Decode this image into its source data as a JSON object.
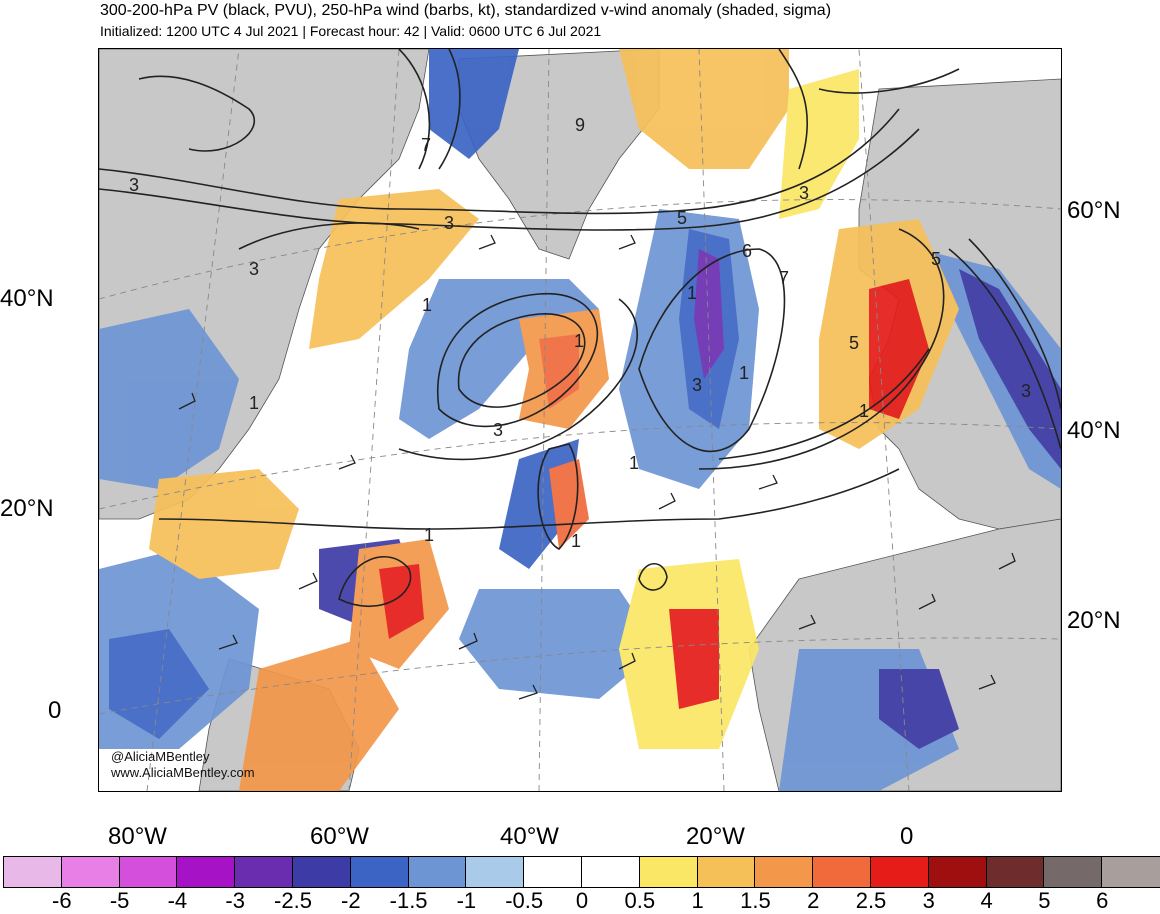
{
  "header": {
    "title": "300-200-hPa PV (black, PVU), 250-hPa wind (barbs, kt), standardized v-wind anomaly (shaded, sigma)",
    "subtitle": "Initialized: 1200 UTC 4 Jul 2021 | Forecast hour: 42 | Valid: 0600 UTC 6 Jul 2021"
  },
  "map": {
    "left_lat_labels": [
      "40°N",
      "20°N",
      "0"
    ],
    "right_lat_labels": [
      "60°N",
      "40°N",
      "20°N"
    ],
    "lon_labels": [
      "80°W",
      "60°W",
      "40°W",
      "20°W",
      "0"
    ],
    "contour_labels": [
      "3",
      "3",
      "5",
      "9",
      "7",
      "3",
      "1",
      "1",
      "3",
      "1",
      "3",
      "1",
      "1",
      "1",
      "5",
      "6",
      "7",
      "5",
      "3",
      "1",
      "1",
      "3",
      "1"
    ],
    "credit": {
      "handle": "@AliciaMBentley",
      "website": "www.AliciaMBentley.com"
    }
  },
  "colorbar": {
    "labels": [
      "-6",
      "-5",
      "-4",
      "-3",
      "-2.5",
      "-2",
      "-1.5",
      "-1",
      "-0.5",
      "0",
      "0.5",
      "1",
      "1.5",
      "2",
      "2.5",
      "3",
      "4",
      "5",
      "6"
    ],
    "colors": [
      "#e8b8e8",
      "#e77fe6",
      "#d34fdc",
      "#a613c7",
      "#6a2db0",
      "#3d3ba6",
      "#3b64c4",
      "#6d95d4",
      "#a9cbe9",
      "#ffffff",
      "#ffffff",
      "#fae766",
      "#f6c058",
      "#f3974a",
      "#f06a3c",
      "#e51c17",
      "#a00f0f",
      "#6e2c2c",
      "#756a69",
      "#a89e9c"
    ]
  }
}
